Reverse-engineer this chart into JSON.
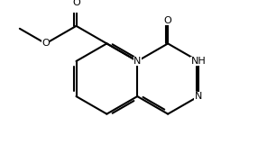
{
  "bg": "#ffffff",
  "lc": "#000000",
  "lw": 1.5,
  "fs": 8.0,
  "figsize": [
    2.96,
    1.7
  ],
  "dpi": 100,
  "xlim": [
    -1.55,
    1.55
  ],
  "ylim": [
    -0.92,
    0.92
  ],
  "doff": 0.028
}
